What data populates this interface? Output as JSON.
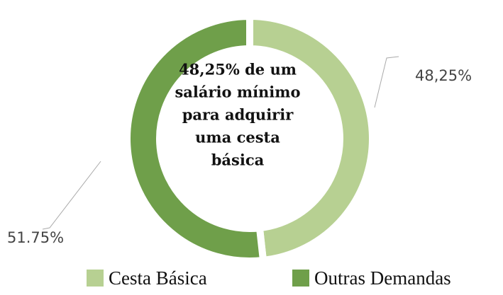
{
  "chart_data": {
    "type": "donut",
    "categories": [
      "Cesta Básica",
      "Outras Demandas"
    ],
    "values": [
      48.25,
      51.75
    ],
    "value_labels": [
      "48,25%",
      "51.75%"
    ],
    "colors": [
      "#b7d092",
      "#6f9f4a"
    ],
    "center_text": [
      "48,25% de um",
      "salário mínimo",
      "para adquirir",
      "uma cesta",
      "básica"
    ]
  }
}
